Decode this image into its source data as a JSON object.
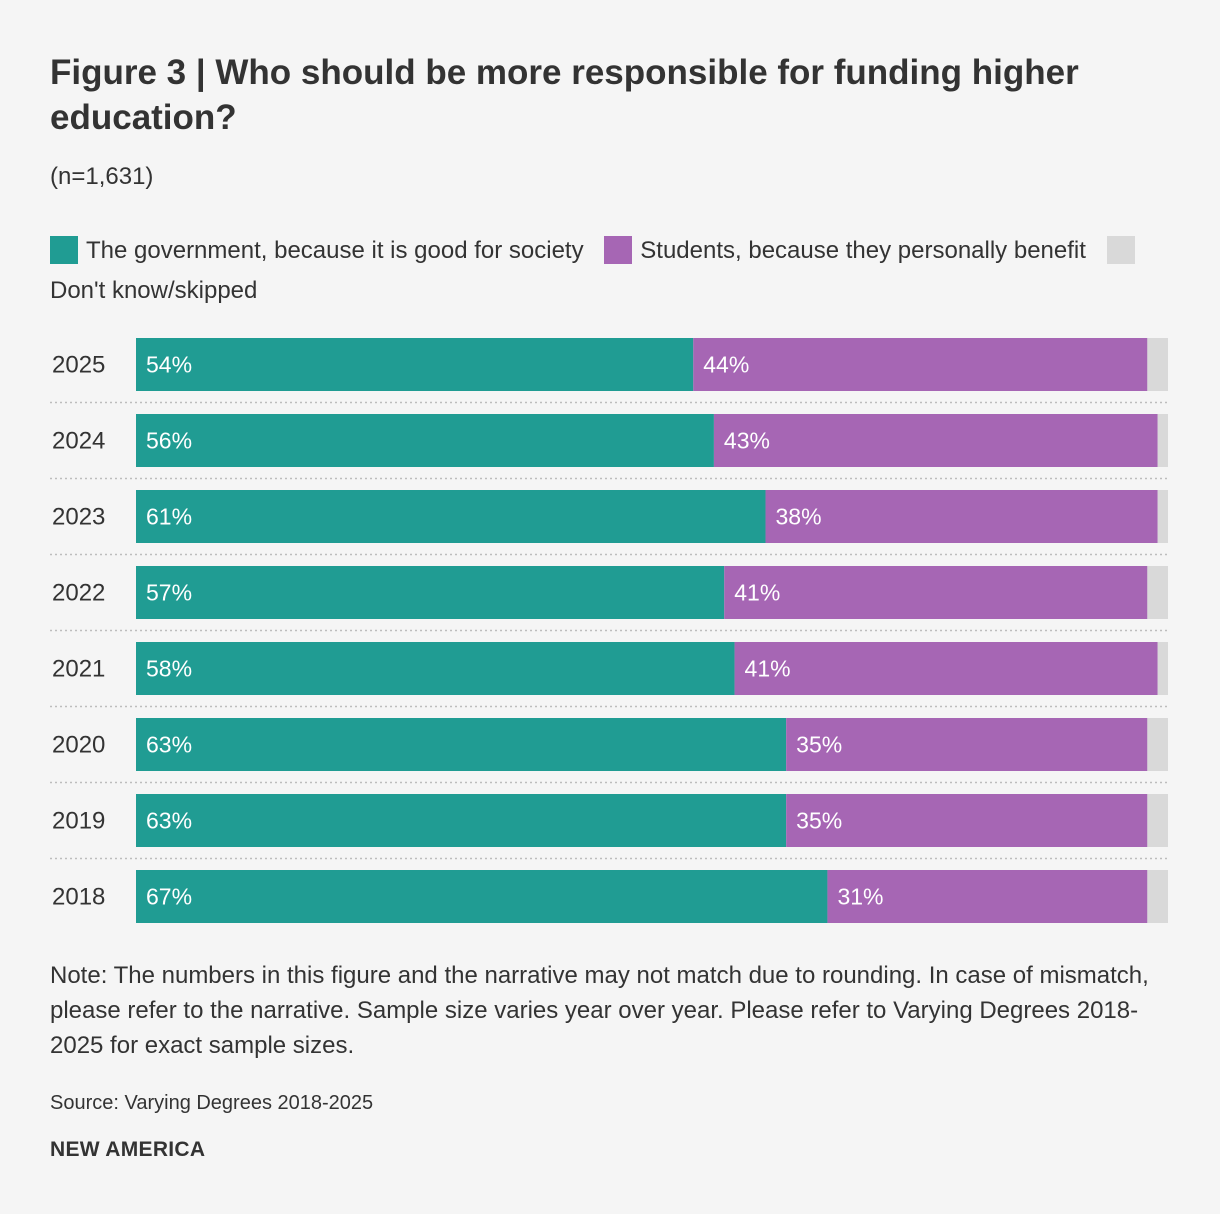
{
  "title": "Figure 3 | Who should be more responsible for funding higher education?",
  "subtitle": "(n=1,631)",
  "chart_data": {
    "type": "bar",
    "orientation": "horizontal",
    "stacked": true,
    "categories": [
      "2025",
      "2024",
      "2023",
      "2022",
      "2021",
      "2020",
      "2019",
      "2018"
    ],
    "series": [
      {
        "name": "The government, because it is good for society",
        "color": "#209c93",
        "values": [
          54,
          56,
          61,
          57,
          58,
          63,
          63,
          67
        ],
        "labels": [
          "54%",
          "56%",
          "61%",
          "57%",
          "58%",
          "63%",
          "63%",
          "67%"
        ]
      },
      {
        "name": "Students, because they personally benefit",
        "color": "#a666b4",
        "values": [
          44,
          43,
          38,
          41,
          41,
          35,
          35,
          31
        ],
        "labels": [
          "44%",
          "43%",
          "38%",
          "41%",
          "41%",
          "35%",
          "35%",
          "31%"
        ]
      },
      {
        "name": "Don't know/skipped",
        "color": "#d9d9d9",
        "values": [
          2,
          1,
          1,
          2,
          1,
          2,
          2,
          2
        ]
      }
    ],
    "xlim": [
      0,
      100
    ],
    "grid": false,
    "legend_position": "top"
  },
  "note": "Note: The numbers in this figure and the narrative may not match due to rounding. In case of mismatch, please refer to the narrative. Sample size varies year over year. Please refer to Varying Degrees 2018- 2025 for exact sample sizes.",
  "source": "Source: Varying Degrees 2018-2025",
  "brand": "NEW AMERICA"
}
